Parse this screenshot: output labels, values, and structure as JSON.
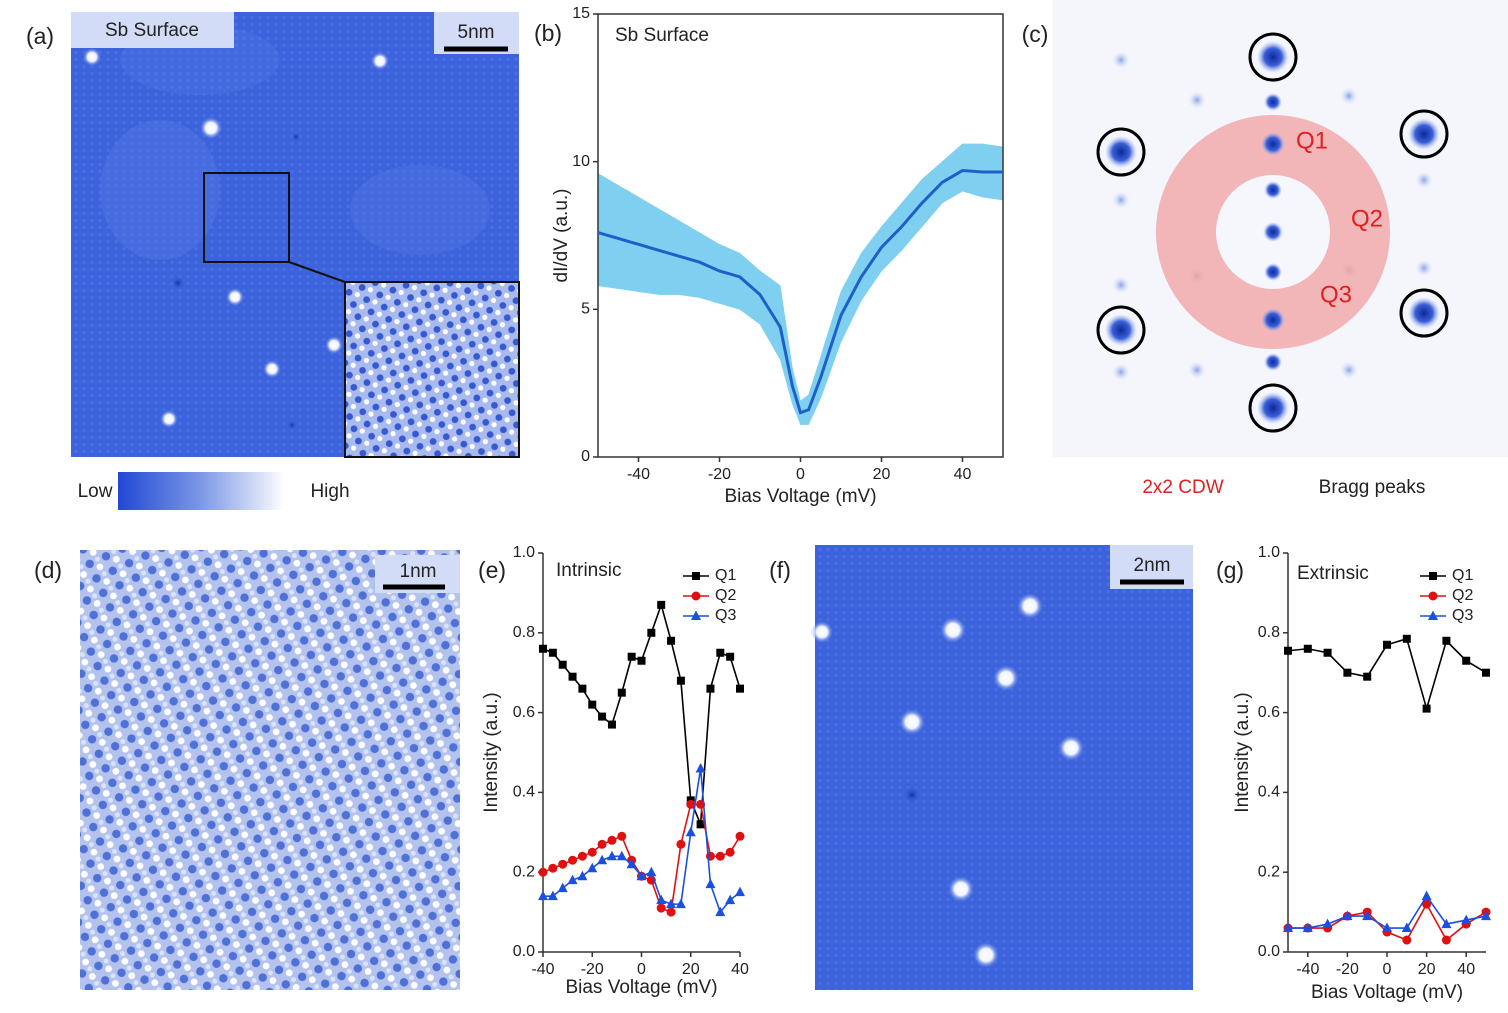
{
  "panel_labels": [
    "(a)",
    "(b)",
    "(c)",
    "(d)",
    "(e)",
    "(f)",
    "(g)"
  ],
  "panel_a": {
    "title": "Sb Surface",
    "scale_bar": "5nm",
    "colorbar_low": "Low",
    "colorbar_high": "High"
  },
  "panel_c": {
    "peak_labels": [
      "Q1",
      "Q2",
      "Q3"
    ],
    "ring_label": "2x2 CDW",
    "circle_label": "Bragg peaks"
  },
  "panel_d": {
    "scale_bar": "1nm"
  },
  "panel_f": {
    "scale_bar": "2nm"
  },
  "chart_data": [
    {
      "type": "band-line",
      "title": "Sb Surface",
      "x_label": "Bias Voltage (mV)",
      "y_label": "dI/dV (a.u.)",
      "x": [
        -50,
        -45,
        -40,
        -35,
        -30,
        -25,
        -20,
        -15,
        -10,
        -5,
        -2,
        0,
        2,
        5,
        10,
        15,
        20,
        25,
        30,
        35,
        40,
        45,
        50
      ],
      "series": [
        {
          "color": "#1f5fc8",
          "values": [
            7.6,
            7.4,
            7.2,
            7.0,
            6.8,
            6.6,
            6.3,
            6.1,
            5.5,
            4.4,
            2.4,
            1.5,
            1.6,
            2.7,
            4.8,
            6.1,
            7.1,
            7.8,
            8.6,
            9.3,
            9.7,
            9.65,
            9.65
          ]
        }
      ],
      "band": {
        "color": "#7fd0f0",
        "upper": [
          9.6,
          9.2,
          8.8,
          8.4,
          8.0,
          7.6,
          7.2,
          6.9,
          6.3,
          5.8,
          3.0,
          1.9,
          2.1,
          3.4,
          5.6,
          6.9,
          7.8,
          8.6,
          9.4,
          10.0,
          10.6,
          10.6,
          10.5
        ],
        "lower": [
          5.8,
          5.7,
          5.6,
          5.5,
          5.5,
          5.4,
          5.2,
          5.0,
          4.5,
          3.3,
          1.8,
          1.1,
          1.1,
          2.0,
          3.9,
          5.3,
          6.3,
          7.0,
          7.8,
          8.6,
          9.0,
          8.8,
          8.7
        ]
      },
      "xlim": [
        -50,
        50
      ],
      "xticks": [
        -40,
        -20,
        0,
        20,
        40
      ],
      "ylim": [
        0,
        15
      ],
      "yticks": [
        0,
        5,
        10,
        15
      ]
    },
    {
      "type": "line",
      "title": "Intrinsic",
      "x_label": "Bias Voltage (mV)",
      "y_label": "Intensity (a.u.)",
      "legend": "upper right",
      "x": [
        -40,
        -36,
        -32,
        -28,
        -24,
        -20,
        -16,
        -12,
        -8,
        -4,
        0,
        4,
        8,
        12,
        16,
        20,
        24,
        28,
        32,
        36,
        40
      ],
      "series": [
        {
          "name": "Q1",
          "color": "#000000",
          "marker": "square",
          "values": [
            0.76,
            0.75,
            0.72,
            0.69,
            0.66,
            0.62,
            0.59,
            0.57,
            0.65,
            0.74,
            0.73,
            0.8,
            0.87,
            0.78,
            0.68,
            0.38,
            0.32,
            0.66,
            0.75,
            0.74,
            0.66
          ]
        },
        {
          "name": "Q2",
          "color": "#e01010",
          "marker": "circle",
          "values": [
            0.2,
            0.21,
            0.22,
            0.23,
            0.24,
            0.25,
            0.27,
            0.28,
            0.29,
            0.23,
            0.19,
            0.18,
            0.11,
            0.1,
            0.27,
            0.37,
            0.37,
            0.24,
            0.24,
            0.25,
            0.29
          ]
        },
        {
          "name": "Q3",
          "color": "#1a4fe0",
          "marker": "triangle",
          "values": [
            0.14,
            0.14,
            0.16,
            0.18,
            0.19,
            0.21,
            0.23,
            0.24,
            0.24,
            0.22,
            0.19,
            0.2,
            0.13,
            0.12,
            0.12,
            0.3,
            0.46,
            0.17,
            0.1,
            0.13,
            0.15
          ]
        }
      ],
      "xlim": [
        -40,
        40
      ],
      "xticks": [
        -40,
        -20,
        0,
        20,
        40
      ],
      "ylim": [
        0,
        1
      ],
      "yticks": [
        {
          "value": 0,
          "label": "0.0"
        },
        0.2,
        0.4,
        0.6,
        0.8,
        {
          "value": 1,
          "label": "1.0"
        }
      ]
    },
    {
      "type": "line",
      "title": "Extrinsic",
      "x_label": "Bias Voltage (mV)",
      "y_label": "Intensity (a.u.)",
      "legend": "upper right",
      "x": [
        -50,
        -40,
        -30,
        -20,
        -10,
        0,
        10,
        20,
        30,
        40,
        50
      ],
      "series": [
        {
          "name": "Q1",
          "color": "#000000",
          "marker": "square",
          "values": [
            0.755,
            0.76,
            0.75,
            0.7,
            0.69,
            0.77,
            0.785,
            0.61,
            0.78,
            0.73,
            0.7
          ]
        },
        {
          "name": "Q2",
          "color": "#e01010",
          "marker": "circle",
          "values": [
            0.06,
            0.06,
            0.06,
            0.09,
            0.1,
            0.05,
            0.03,
            0.12,
            0.03,
            0.07,
            0.1
          ]
        },
        {
          "name": "Q3",
          "color": "#1a4fe0",
          "marker": "triangle",
          "values": [
            0.06,
            0.06,
            0.07,
            0.09,
            0.09,
            0.06,
            0.06,
            0.14,
            0.07,
            0.08,
            0.09
          ]
        }
      ],
      "xlim": [
        -50,
        50
      ],
      "xticks": [
        -40,
        -20,
        0,
        20,
        40
      ],
      "ylim": [
        0,
        1
      ],
      "yticks": [
        {
          "value": 0,
          "label": "0.0"
        },
        0.2,
        0.4,
        0.6,
        0.8,
        {
          "value": 1,
          "label": "1.0"
        }
      ]
    }
  ]
}
